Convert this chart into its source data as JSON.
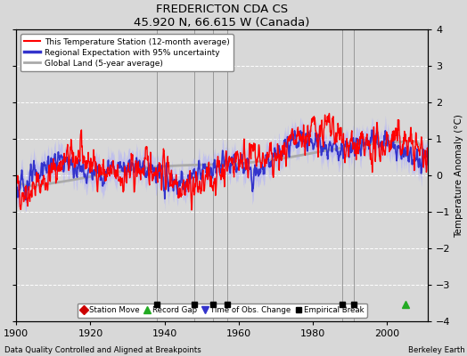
{
  "title": "FREDERICTON CDA CS",
  "subtitle": "45.920 N, 66.615 W (Canada)",
  "xlabel_note": "Data Quality Controlled and Aligned at Breakpoints",
  "xlabel_credit": "Berkeley Earth",
  "ylabel": "Temperature Anomaly (°C)",
  "xlim": [
    1900,
    2011
  ],
  "ylim": [
    -4,
    4
  ],
  "yticks": [
    -4,
    -3,
    -2,
    -1,
    0,
    1,
    2,
    3,
    4
  ],
  "xticks": [
    1900,
    1920,
    1940,
    1960,
    1980,
    2000
  ],
  "bg_color": "#d8d8d8",
  "plot_bg_color": "#d8d8d8",
  "grid_color": "#ffffff",
  "empirical_breaks": [
    1938,
    1948,
    1953,
    1957,
    1988,
    1991
  ],
  "record_gaps": [
    2005
  ],
  "station_moves": [],
  "obs_changes": [],
  "station_data_seed": 42,
  "regional_seed": 123,
  "legend_items": [
    {
      "label": "This Temperature Station (12-month average)",
      "color": "#ff0000",
      "lw": 1.0
    },
    {
      "label": "Regional Expectation with 95% uncertainty",
      "color": "#3333cc",
      "lw": 1.2
    },
    {
      "label": "Global Land (5-year average)",
      "color": "#aaaaaa",
      "lw": 2.0
    }
  ],
  "uncertainty_color": "#aaaaff",
  "uncertainty_alpha": 0.5
}
